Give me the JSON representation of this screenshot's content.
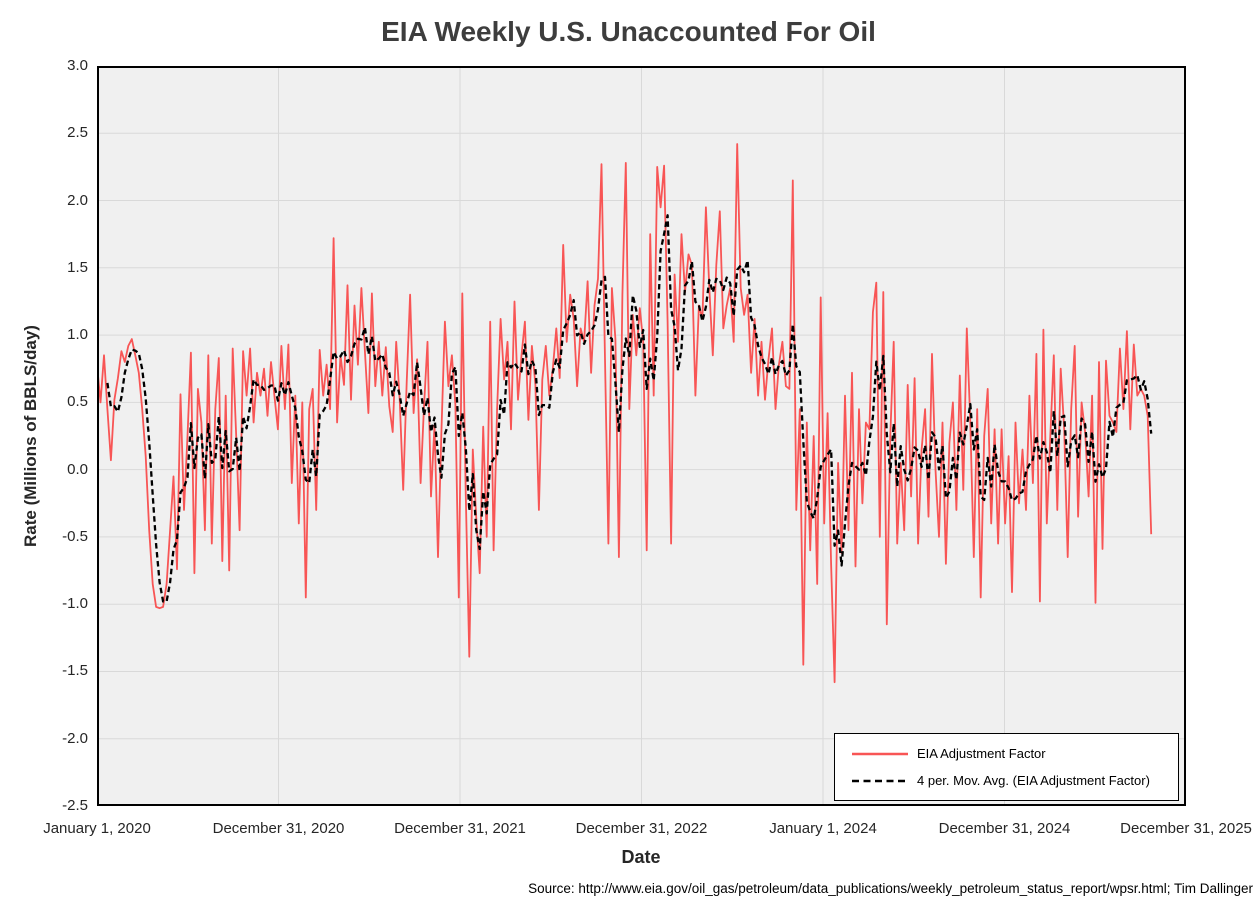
{
  "title": "EIA Weekly U.S. Unaccounted For Oil",
  "source_note": "Source: http://www.eia.gov/oil_gas/petroleum/data_publications/weekly_petroleum_status_report/wpsr.html; Tim Dallinger",
  "legend": {
    "items": [
      {
        "label": "EIA Adjustment Factor",
        "style": "solid",
        "color": "#F85555"
      },
      {
        "label": "4 per. Mov. Avg. (EIA Adjustment Factor)",
        "style": "dashed",
        "color": "#000000"
      }
    ]
  },
  "chart_data": {
    "type": "line",
    "title": "EIA Weekly U.S. Unaccounted For Oil",
    "xlabel": "Date",
    "ylabel": "Rate (Millions of BBLS/day)",
    "ylim": [
      -2.5,
      3.0
    ],
    "y_tick_labels": [
      "3.0",
      "2.5",
      "2.0",
      "1.5",
      "1.0",
      "0.5",
      "0.0",
      "-0.5",
      "-1.0",
      "-1.5",
      "-2.0",
      "-2.5"
    ],
    "x_tick_labels": [
      "January 1, 2020",
      "December 31, 2020",
      "December 31, 2021",
      "December 31, 2022",
      "January 1, 2024",
      "December 31, 2024",
      "December 31, 2025"
    ],
    "x_total_weeks": 313,
    "grid": true,
    "legend_position": "inside-bottom-right",
    "colors": {
      "plot_bg": "#F0F0F0",
      "grid": "#D9D9D9",
      "border": "#000000",
      "series_red": "#F85555",
      "series_ma": "#000000"
    },
    "series": [
      {
        "name": "EIA Adjustment Factor",
        "color": "#F85555",
        "cadence": "weekly",
        "start_week": 0,
        "values": [
          0.78,
          0.5,
          0.85,
          0.45,
          0.07,
          0.52,
          0.68,
          0.88,
          0.8,
          0.92,
          0.97,
          0.85,
          0.72,
          0.45,
          0.1,
          -0.45,
          -0.85,
          -1.02,
          -1.03,
          -1.02,
          -0.85,
          -0.45,
          -0.05,
          -0.74,
          0.56,
          -0.3,
          0.25,
          0.87,
          -0.77,
          0.6,
          0.35,
          -0.45,
          0.85,
          -0.55,
          0.45,
          0.83,
          -0.68,
          0.55,
          -0.75,
          0.9,
          0.25,
          -0.45,
          0.88,
          0.55,
          0.9,
          0.35,
          0.72,
          0.55,
          0.75,
          0.4,
          0.8,
          0.55,
          0.3,
          0.92,
          0.45,
          0.93,
          -0.1,
          0.55,
          -0.4,
          0.5,
          -0.95,
          0.45,
          0.6,
          -0.3,
          0.89,
          0.55,
          0.78,
          0.45,
          1.72,
          0.35,
          0.85,
          0.63,
          1.37,
          0.52,
          1.22,
          0.78,
          1.35,
          0.88,
          0.42,
          1.31,
          0.62,
          0.95,
          0.55,
          0.91,
          0.47,
          0.28,
          0.95,
          0.52,
          -0.15,
          0.65,
          1.3,
          0.42,
          0.82,
          -0.1,
          0.47,
          0.95,
          -0.2,
          0.33,
          -0.65,
          0.28,
          1.1,
          0.62,
          0.85,
          0.48,
          -0.95,
          1.31,
          -0.2,
          -1.39,
          0.15,
          -0.35,
          -0.77,
          0.32,
          -0.5,
          1.1,
          -0.6,
          0.45,
          1.12,
          0.67,
          0.95,
          0.3,
          1.25,
          0.52,
          0.85,
          1.1,
          0.37,
          0.92,
          0.63,
          -0.3,
          0.67,
          0.92,
          0.55,
          0.75,
          1.05,
          0.68,
          1.67,
          0.95,
          1.3,
          1.12,
          0.62,
          1.05,
          0.95,
          1.4,
          0.72,
          1.22,
          1.42,
          2.27,
          0.82,
          -0.55,
          1.35,
          0.97,
          -0.65,
          1.3,
          2.28,
          0.45,
          1.15,
          0.85,
          1.2,
          0.95,
          -0.6,
          1.75,
          0.55,
          2.25,
          1.95,
          2.26,
          1.1,
          -0.55,
          1.45,
          0.95,
          1.75,
          1.32,
          1.6,
          1.52,
          0.55,
          1.22,
          1.12,
          1.95,
          1.35,
          0.85,
          1.52,
          1.92,
          1.05,
          1.22,
          1.35,
          0.95,
          2.42,
          1.35,
          1.15,
          1.3,
          0.72,
          1.12,
          0.55,
          0.95,
          0.52,
          0.82,
          1.05,
          0.45,
          0.78,
          0.95,
          0.62,
          0.6,
          2.15,
          -0.3,
          0.45,
          -1.45,
          0.35,
          -0.6,
          0.25,
          -0.85,
          1.28,
          -0.4,
          0.42,
          -0.7,
          -1.58,
          0.05,
          -0.62,
          0.55,
          -0.45,
          0.72,
          -0.72,
          0.45,
          -0.25,
          0.35,
          0.3,
          1.17,
          1.39,
          -0.5,
          1.32,
          -1.15,
          0.25,
          0.95,
          -0.55,
          0.05,
          -0.45,
          0.63,
          -0.2,
          0.68,
          -0.55,
          0.15,
          0.45,
          -0.35,
          0.86,
          0.0,
          -0.5,
          0.35,
          -0.7,
          0.2,
          0.5,
          -0.3,
          0.7,
          -0.15,
          1.05,
          0.35,
          -0.65,
          0.45,
          -0.95,
          0.25,
          0.6,
          -0.4,
          0.3,
          -0.55,
          0.3,
          -0.4,
          0.1,
          -0.91,
          0.35,
          -0.25,
          0.15,
          -0.3,
          0.55,
          -0.1,
          0.86,
          -0.98,
          1.04,
          -0.4,
          0.25,
          0.85,
          -0.3,
          0.75,
          0.3,
          -0.65,
          0.45,
          0.92,
          -0.35,
          0.5,
          0.28,
          -0.2,
          0.55,
          -0.99,
          0.8,
          -0.59,
          0.81,
          0.4,
          0.35,
          0.28,
          0.9,
          0.45,
          1.03,
          0.3,
          0.93,
          0.55,
          0.6,
          0.55,
          0.4,
          -0.48
        ]
      },
      {
        "name": "4 per. Mov. Avg. (EIA Adjustment Factor)",
        "color": "#000000",
        "dashed": true,
        "derived": "trailing 4-week moving average of EIA Adjustment Factor",
        "period": 4
      }
    ]
  }
}
